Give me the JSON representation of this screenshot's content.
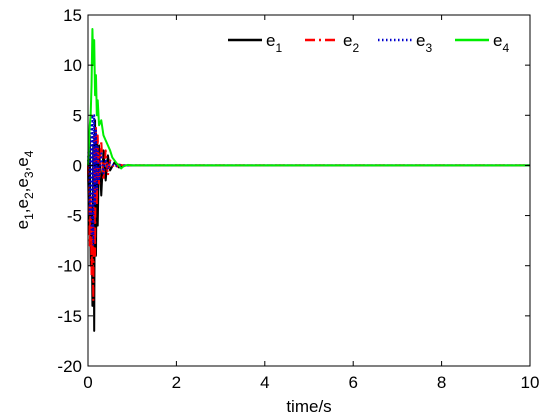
{
  "chart_data": {
    "type": "line",
    "xlabel": "time/s",
    "ylabel": {
      "parts": [
        {
          "base": "e",
          "sub": "1"
        },
        {
          "base": ",e",
          "sub": "2"
        },
        {
          "base": ",e",
          "sub": "3"
        },
        {
          "base": ",e",
          "sub": "4"
        }
      ]
    },
    "xlim": [
      0,
      10
    ],
    "ylim": [
      -20,
      15
    ],
    "xticks": [
      "0",
      "2",
      "4",
      "6",
      "8",
      "10"
    ],
    "xtick_values": [
      0,
      2,
      4,
      6,
      8,
      10
    ],
    "yticks": [
      "15",
      "10",
      "5",
      "0",
      "-5",
      "-10",
      "-15",
      "-20"
    ],
    "ytick_values": [
      15,
      10,
      5,
      0,
      -5,
      -10,
      -15,
      -20
    ],
    "grid": false,
    "legend_position": "top-right",
    "series": [
      {
        "name": {
          "base": "e",
          "sub": "1"
        },
        "color": "#000000",
        "style": "solid",
        "x": [
          0,
          0.02,
          0.04,
          0.06,
          0.08,
          0.1,
          0.12,
          0.14,
          0.16,
          0.18,
          0.2,
          0.22,
          0.25,
          0.3,
          0.35,
          0.4,
          0.45,
          0.5,
          0.6,
          0.7,
          0.8,
          1.0,
          1.5,
          2,
          10
        ],
        "y": [
          0,
          -6,
          3,
          -10,
          -4,
          -14,
          2,
          -16.5,
          4.5,
          -9,
          3,
          -6,
          2,
          -3,
          1.5,
          -1.5,
          1,
          -0.5,
          0.3,
          -0.2,
          0,
          0,
          0,
          0,
          0
        ]
      },
      {
        "name": {
          "base": "e",
          "sub": "2"
        },
        "color": "#ff0000",
        "style": "dashdot",
        "x": [
          0,
          0.02,
          0.04,
          0.06,
          0.08,
          0.1,
          0.12,
          0.14,
          0.16,
          0.18,
          0.2,
          0.22,
          0.25,
          0.3,
          0.35,
          0.4,
          0.45,
          0.5,
          0.6,
          0.7,
          0.8,
          1.0,
          1.5,
          2,
          10
        ],
        "y": [
          0,
          -4,
          -8,
          -3,
          -11,
          -6,
          -13.5,
          3,
          -9,
          4,
          -4,
          3,
          -2,
          2.5,
          -1.5,
          1.5,
          -1,
          0.5,
          -0.3,
          0.1,
          0,
          0,
          0,
          0,
          0
        ]
      },
      {
        "name": {
          "base": "e",
          "sub": "3"
        },
        "color": "#0000cc",
        "style": "dotted",
        "x": [
          0,
          0.02,
          0.04,
          0.06,
          0.08,
          0.1,
          0.12,
          0.14,
          0.16,
          0.18,
          0.2,
          0.22,
          0.25,
          0.3,
          0.35,
          0.4,
          0.45,
          0.5,
          0.6,
          0.7,
          0.8,
          1.0,
          1.5,
          2,
          10
        ],
        "y": [
          0,
          3,
          -5,
          4,
          -7,
          5,
          -8,
          5,
          -4,
          3.5,
          -2.5,
          2,
          -1.5,
          1.2,
          -0.8,
          0.6,
          -0.4,
          0.3,
          -0.1,
          0.05,
          0,
          0,
          0,
          0,
          0
        ]
      },
      {
        "name": {
          "base": "e",
          "sub": "4"
        },
        "color": "#00ee00",
        "style": "solid",
        "x": [
          0,
          0.02,
          0.04,
          0.06,
          0.08,
          0.1,
          0.12,
          0.14,
          0.16,
          0.18,
          0.2,
          0.22,
          0.25,
          0.3,
          0.35,
          0.4,
          0.45,
          0.5,
          0.55,
          0.6,
          0.65,
          0.7,
          0.75,
          0.8,
          0.9,
          1.0,
          1.5,
          2,
          10
        ],
        "y": [
          0,
          2,
          4,
          5,
          8,
          13.6,
          10,
          12.5,
          7,
          9,
          5,
          6.5,
          4,
          4.5,
          3,
          2.5,
          2,
          1.5,
          0.8,
          0.5,
          0.2,
          0,
          -0.3,
          -0.1,
          0.05,
          0,
          0,
          0,
          0
        ]
      }
    ]
  }
}
